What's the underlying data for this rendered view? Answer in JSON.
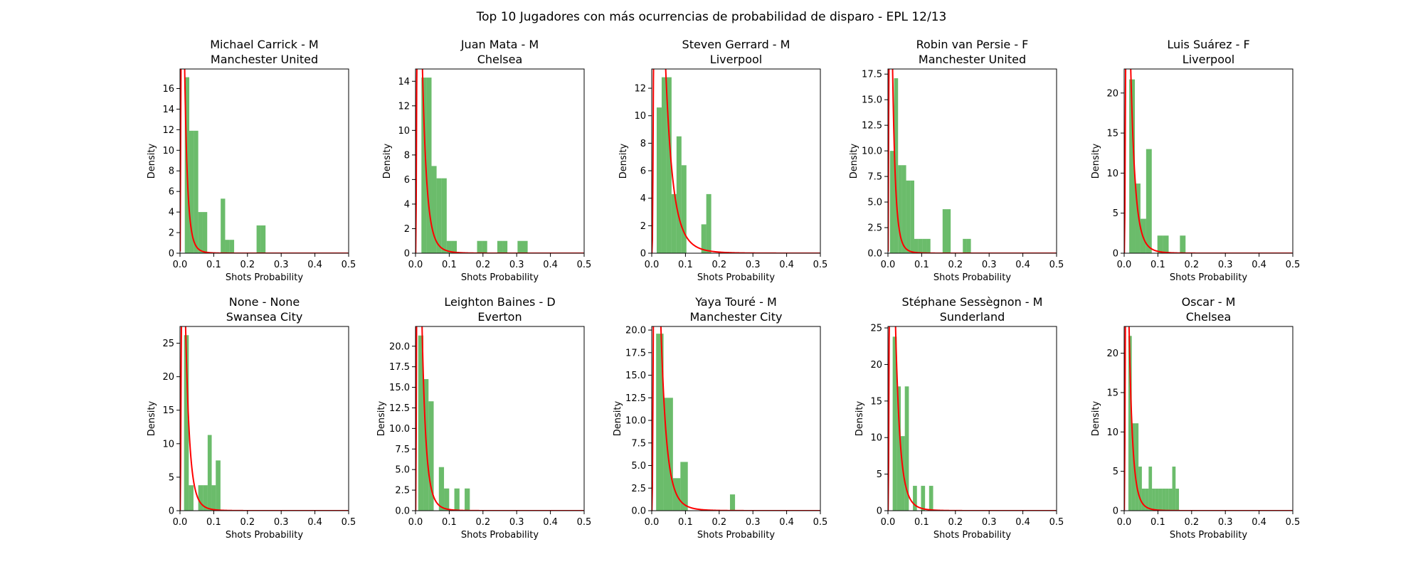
{
  "figure": {
    "title": "Top 10 Jugadores con más ocurrencias de probabilidad de disparo - EPL 12/13",
    "colors": {
      "bars": "#2ca02c",
      "curve": "#ff0000",
      "axes": "#000000"
    }
  },
  "chart_data": [
    {
      "type": "bar",
      "title": "Michael Carrick - M",
      "subtitle": "Manchester United",
      "xlabel": "Shots Probability",
      "ylabel": "Density",
      "xlim": [
        0,
        0.5
      ],
      "ylim": [
        0,
        17.9
      ],
      "xticks": [
        0.0,
        0.1,
        0.2,
        0.3,
        0.4,
        0.5
      ],
      "yticks": [
        0,
        2,
        4,
        6,
        8,
        10,
        12,
        14,
        16
      ],
      "histogram": {
        "bin_edges": [
          0.0142,
          0.0275,
          0.0408,
          0.0541,
          0.0674,
          0.0807,
          0.094,
          0.1073,
          0.1206,
          0.1339,
          0.1472,
          0.1605,
          0.1738,
          0.1871,
          0.2004,
          0.2137,
          0.227,
          0.2403,
          0.2536
        ],
        "density": [
          17.1,
          11.9,
          11.9,
          4.0,
          4.0,
          0,
          0,
          0,
          5.3,
          1.3,
          1.3,
          0,
          0,
          0,
          0,
          0,
          2.7,
          2.7
        ]
      },
      "fit_curve": {
        "peak_x": 0.018,
        "peak_y": 11.2
      }
    },
    {
      "type": "bar",
      "title": "Juan Mata - M",
      "subtitle": "Chelsea",
      "xlabel": "Shots Probability",
      "ylabel": "Density",
      "xlim": [
        0,
        0.5
      ],
      "ylim": [
        0,
        15.0
      ],
      "xticks": [
        0.0,
        0.1,
        0.2,
        0.3,
        0.4,
        0.5
      ],
      "yticks": [
        0,
        2,
        4,
        6,
        8,
        10,
        12,
        14
      ],
      "histogram": {
        "bin_edges": [
          0.0175,
          0.0325,
          0.0475,
          0.0625,
          0.0775,
          0.0925,
          0.1075,
          0.1225,
          0.1375,
          0.1525,
          0.1675,
          0.1825,
          0.1975,
          0.2125,
          0.2275,
          0.2425,
          0.2575,
          0.2725,
          0.2875,
          0.3025,
          0.3175,
          0.3325
        ],
        "density": [
          14.3,
          14.3,
          7.1,
          6.1,
          6.1,
          1.0,
          1.0,
          0,
          0,
          0,
          0,
          1.0,
          1.0,
          0,
          0,
          1.0,
          1.0,
          0,
          0,
          1.0,
          1.0
        ]
      },
      "fit_curve": {
        "peak_x": 0.027,
        "peak_y": 9.3
      }
    },
    {
      "type": "bar",
      "title": "Steven Gerrard - M",
      "subtitle": "Liverpool",
      "xlabel": "Shots Probability",
      "ylabel": "Density",
      "xlim": [
        0,
        0.5
      ],
      "ylim": [
        0,
        13.4
      ],
      "xticks": [
        0.0,
        0.1,
        0.2,
        0.3,
        0.4,
        0.5
      ],
      "yticks": [
        0,
        2,
        4,
        6,
        8,
        10,
        12
      ],
      "histogram": {
        "bin_edges": [
          0.0147,
          0.0294,
          0.0441,
          0.0588,
          0.0735,
          0.0882,
          0.1029,
          0.1176,
          0.1323,
          0.147,
          0.1617,
          0.1764
        ],
        "density": [
          10.6,
          12.8,
          12.8,
          4.3,
          8.5,
          6.4,
          0,
          0,
          0,
          2.1,
          4.3
        ]
      },
      "fit_curve": {
        "peak_x": 0.045,
        "peak_y": 11.4
      }
    },
    {
      "type": "bar",
      "title": "Robin van Persie - F",
      "subtitle": "Manchester United",
      "xlabel": "Shots Probability",
      "ylabel": "Density",
      "xlim": [
        0,
        0.5
      ],
      "ylim": [
        0,
        18.0
      ],
      "xticks": [
        0.0,
        0.1,
        0.2,
        0.3,
        0.4,
        0.5
      ],
      "yticks": [
        0.0,
        2.5,
        5.0,
        7.5,
        10.0,
        12.5,
        15.0,
        17.5
      ],
      "histogram": {
        "bin_edges": [
          0.006,
          0.018,
          0.03,
          0.042,
          0.054,
          0.066,
          0.078,
          0.09,
          0.102,
          0.114,
          0.126,
          0.138,
          0.15,
          0.162,
          0.174,
          0.186,
          0.198,
          0.21,
          0.222,
          0.234,
          0.246
        ],
        "density": [
          10.0,
          17.1,
          8.6,
          8.6,
          7.1,
          7.1,
          1.4,
          1.4,
          1.4,
          1.4,
          0,
          0,
          0,
          4.3,
          4.3,
          0,
          0,
          0,
          1.4,
          1.4
        ]
      },
      "fit_curve": {
        "peak_x": 0.018,
        "peak_y": 11.2
      }
    },
    {
      "type": "bar",
      "title": "Luis Suárez - F",
      "subtitle": "Liverpool",
      "xlabel": "Shots Probability",
      "ylabel": "Density",
      "xlim": [
        0,
        0.5
      ],
      "ylim": [
        0,
        23.0
      ],
      "xticks": [
        0.0,
        0.1,
        0.2,
        0.3,
        0.4,
        0.5
      ],
      "yticks": [
        0,
        5,
        10,
        15,
        20
      ],
      "histogram": {
        "bin_edges": [
          0.015,
          0.0317,
          0.0484,
          0.0651,
          0.0818,
          0.0985,
          0.1152,
          0.1319,
          0.1486,
          0.1653,
          0.182,
          0.1987
        ],
        "density": [
          21.7,
          8.7,
          4.3,
          13.0,
          0,
          2.2,
          2.2,
          0,
          0,
          2.2,
          0
        ]
      },
      "fit_curve": {
        "peak_x": 0.028,
        "peak_y": 12.5
      }
    },
    {
      "type": "bar",
      "title": "None - None",
      "subtitle": "Swansea City",
      "xlabel": "Shots Probability",
      "ylabel": "Density",
      "xlim": [
        0,
        0.5
      ],
      "ylim": [
        0,
        27.5
      ],
      "xticks": [
        0.0,
        0.1,
        0.2,
        0.3,
        0.4,
        0.5
      ],
      "yticks": [
        0,
        5,
        10,
        15,
        20,
        25
      ],
      "histogram": {
        "bin_edges": [
          0.012,
          0.026,
          0.04,
          0.054,
          0.068,
          0.082,
          0.094,
          0.106,
          0.12,
          0.134
        ],
        "density": [
          26.2,
          3.8,
          0,
          3.8,
          3.8,
          11.3,
          3.8,
          7.5,
          0
        ]
      },
      "fit_curve": {
        "peak_x": 0.025,
        "peak_y": 14.0
      }
    },
    {
      "type": "bar",
      "title": "Leighton Baines - D",
      "subtitle": "Everton",
      "xlabel": "Shots Probability",
      "ylabel": "Density",
      "xlim": [
        0,
        0.5
      ],
      "ylim": [
        0,
        22.4
      ],
      "xticks": [
        0.0,
        0.1,
        0.2,
        0.3,
        0.4,
        0.5
      ],
      "yticks": [
        0.0,
        2.5,
        5.0,
        7.5,
        10.0,
        12.5,
        15.0,
        17.5,
        20.0
      ],
      "histogram": {
        "bin_edges": [
          0.008,
          0.0233,
          0.0386,
          0.0539,
          0.0692,
          0.0845,
          0.0998,
          0.1151,
          0.1304,
          0.1457,
          0.161
        ],
        "density": [
          21.3,
          16.0,
          13.3,
          0,
          5.3,
          2.7,
          0,
          2.7,
          0,
          2.7
        ]
      },
      "fit_curve": {
        "peak_x": 0.024,
        "peak_y": 15.2
      }
    },
    {
      "type": "bar",
      "title": "Yaya Touré - M",
      "subtitle": "Manchester City",
      "xlabel": "Shots Probability",
      "ylabel": "Density",
      "xlim": [
        0,
        0.5
      ],
      "ylim": [
        0,
        20.4
      ],
      "xticks": [
        0.0,
        0.1,
        0.2,
        0.3,
        0.4,
        0.5
      ],
      "yticks": [
        0.0,
        2.5,
        5.0,
        7.5,
        10.0,
        12.5,
        15.0,
        17.5,
        20.0
      ],
      "histogram": {
        "bin_edges": [
          0.013,
          0.035,
          0.063,
          0.085,
          0.107,
          0.129,
          0.151,
          0.173,
          0.195,
          0.217,
          0.232,
          0.247
        ],
        "density": [
          19.6,
          12.5,
          3.6,
          5.4,
          0,
          0,
          0,
          0,
          0,
          0,
          1.8
        ]
      },
      "fit_curve": {
        "peak_x": 0.035,
        "peak_y": 13.0
      }
    },
    {
      "type": "bar",
      "title": "Stéphane Sessègnon - M",
      "subtitle": "Sunderland",
      "xlabel": "Shots Probability",
      "ylabel": "Density",
      "xlim": [
        0,
        0.5
      ],
      "ylim": [
        0,
        25.2
      ],
      "xticks": [
        0.0,
        0.1,
        0.2,
        0.3,
        0.4,
        0.5
      ],
      "yticks": [
        0,
        5,
        10,
        15,
        20,
        25
      ],
      "histogram": {
        "bin_edges": [
          0.014,
          0.026,
          0.038,
          0.05,
          0.062,
          0.074,
          0.086,
          0.098,
          0.11,
          0.122,
          0.134,
          0.146
        ],
        "density": [
          23.8,
          17.0,
          10.2,
          17.0,
          0,
          3.4,
          0,
          3.4,
          0,
          3.4,
          0
        ]
      },
      "fit_curve": {
        "peak_x": 0.028,
        "peak_y": 17.0
      }
    },
    {
      "type": "bar",
      "title": "Oscar - M",
      "subtitle": "Chelsea",
      "xlabel": "Shots Probability",
      "ylabel": "Density",
      "xlim": [
        0,
        0.5
      ],
      "ylim": [
        0,
        23.4
      ],
      "xticks": [
        0.0,
        0.1,
        0.2,
        0.3,
        0.4,
        0.5
      ],
      "yticks": [
        0,
        5,
        10,
        15,
        20
      ],
      "histogram": {
        "bin_edges": [
          0.0125,
          0.0225,
          0.0325,
          0.0425,
          0.0525,
          0.0625,
          0.0725,
          0.0825,
          0.0925,
          0.1025,
          0.1125,
          0.1225,
          0.1325,
          0.1425,
          0.1525,
          0.1625
        ],
        "density": [
          22.2,
          11.1,
          11.1,
          5.6,
          2.8,
          2.8,
          5.6,
          2.8,
          2.8,
          2.8,
          2.8,
          2.8,
          2.8,
          5.6,
          2.8
        ]
      },
      "fit_curve": {
        "peak_x": 0.022,
        "peak_y": 11.8
      }
    }
  ]
}
